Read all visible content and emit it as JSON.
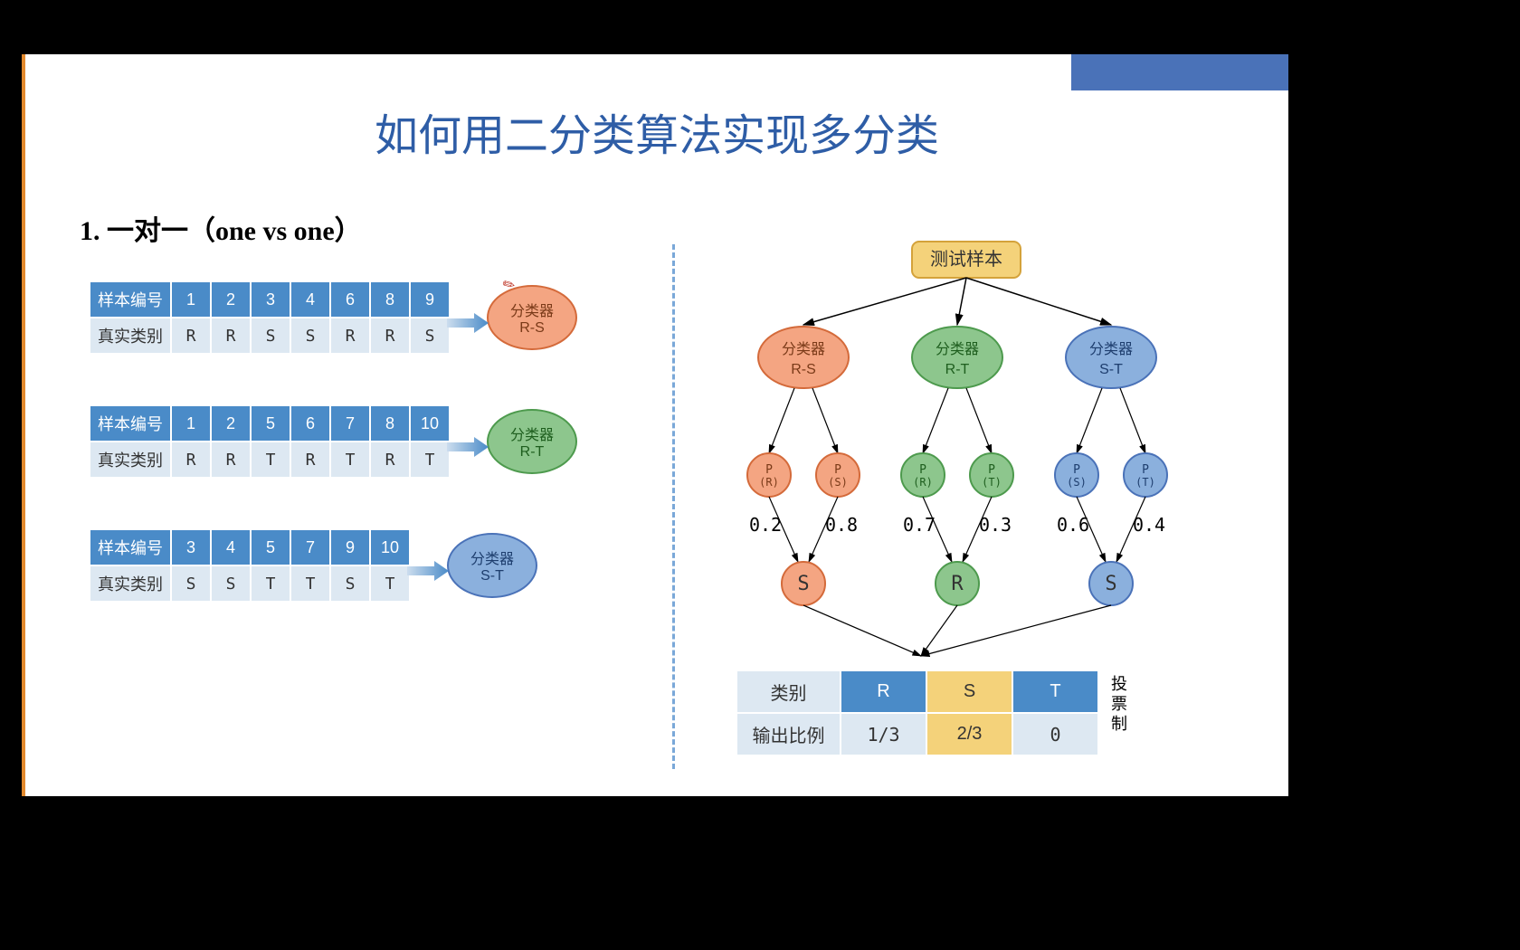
{
  "title": "如何用二分类算法实现多分类",
  "subtitle_num": "1.",
  "subtitle_text": "一对一（one vs one）",
  "row_header": "样本编号",
  "row_label": "真实类别",
  "tables": [
    {
      "ids": [
        "1",
        "2",
        "3",
        "4",
        "6",
        "8",
        "9"
      ],
      "classes": [
        "R",
        "R",
        "S",
        "S",
        "R",
        "R",
        "S"
      ],
      "classifier_top": "分类器",
      "classifier_bot": "R-S",
      "color_class": "c-rs"
    },
    {
      "ids": [
        "1",
        "2",
        "5",
        "6",
        "7",
        "8",
        "10"
      ],
      "classes": [
        "R",
        "R",
        "T",
        "R",
        "T",
        "R",
        "T"
      ],
      "classifier_top": "分类器",
      "classifier_bot": "R-T",
      "color_class": "c-rt"
    },
    {
      "ids": [
        "3",
        "4",
        "5",
        "7",
        "9",
        "10"
      ],
      "classes": [
        "S",
        "S",
        "T",
        "T",
        "S",
        "T"
      ],
      "classifier_top": "分类器",
      "classifier_bot": "S-T",
      "color_class": "c-st"
    }
  ],
  "tree": {
    "root": "测试样本",
    "root_bg": "#f4d27a",
    "root_border": "#d4a23a",
    "classifiers": [
      {
        "top": "分类器",
        "bot": "R-S",
        "bg": "#f4a582",
        "border": "#d46a3a",
        "tcolor": "#7a3a18",
        "left": {
          "t": "P",
          "b": "(R)",
          "v": "0.2"
        },
        "right": {
          "t": "P",
          "b": "(S)",
          "v": "0.8"
        },
        "result": "S",
        "res_bg": "#f4a582",
        "res_border": "#d46a3a"
      },
      {
        "top": "分类器",
        "bot": "R-T",
        "bg": "#8dc68d",
        "border": "#4d9a4d",
        "tcolor": "#1e5e1e",
        "left": {
          "t": "P",
          "b": "(R)",
          "v": "0.7"
        },
        "right": {
          "t": "P",
          "b": "(T)",
          "v": "0.3"
        },
        "result": "R",
        "res_bg": "#8dc68d",
        "res_border": "#4d9a4d"
      },
      {
        "top": "分类器",
        "bot": "S-T",
        "bg": "#8bb0dd",
        "border": "#4a72b8",
        "tcolor": "#1e3e6e",
        "left": {
          "t": "P",
          "b": "(S)",
          "v": "0.6"
        },
        "right": {
          "t": "P",
          "b": "(T)",
          "v": "0.4"
        },
        "result": "S",
        "res_bg": "#8bb0dd",
        "res_border": "#4a72b8"
      }
    ]
  },
  "result_table": {
    "hdr_label": "类别",
    "row_label": "输出比例",
    "cols": [
      "R",
      "S",
      "T"
    ],
    "vals": [
      "1/3",
      "2/3",
      "0"
    ],
    "highlight_col": 1
  },
  "vote_label": "投票制"
}
